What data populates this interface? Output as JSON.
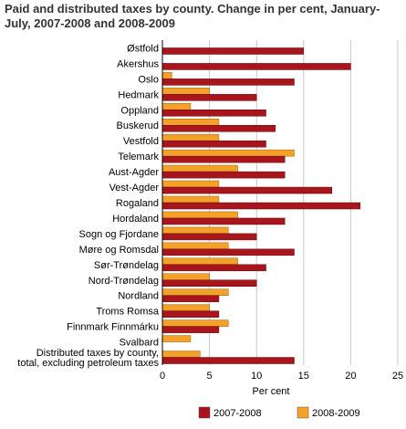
{
  "chart_data": {
    "type": "bar",
    "orientation": "horizontal",
    "title": "Paid and distributed taxes by county. Change in per cent, January-July, 2007-2008 and 2008-2009",
    "xlabel": "Per cent",
    "xlim": [
      0,
      25
    ],
    "xticks": [
      "0",
      "5",
      "10",
      "15",
      "20",
      "25"
    ],
    "grid": true,
    "legend_position": "bottom",
    "categories": [
      [
        "Østfold"
      ],
      [
        "Akershus"
      ],
      [
        "Oslo"
      ],
      [
        "Hedmark"
      ],
      [
        "Oppland"
      ],
      [
        "Buskerud"
      ],
      [
        "Vestfold"
      ],
      [
        "Telemark"
      ],
      [
        "Aust-Agder"
      ],
      [
        "Vest-Agder"
      ],
      [
        "Rogaland"
      ],
      [
        "Hordaland"
      ],
      [
        "Sogn og Fjordane"
      ],
      [
        "Møre og Romsdal"
      ],
      [
        "Sør-Trøndelag"
      ],
      [
        "Nord-Trøndelag"
      ],
      [
        "Nordland"
      ],
      [
        "Troms Romsa"
      ],
      [
        "Finnmark Finnmárku"
      ],
      [
        "Svalbard"
      ],
      [
        "Distributed taxes by county,",
        "total, excluding petroleum taxes"
      ]
    ],
    "series": [
      {
        "name": "2007-2008",
        "color": "#a8151c",
        "values": [
          15,
          20,
          14,
          10,
          11,
          12,
          11,
          13,
          13,
          18,
          21,
          13,
          10,
          14,
          11,
          10,
          6,
          6,
          6,
          null,
          14
        ]
      },
      {
        "name": "2008-2009",
        "color": "#f3a129",
        "values": [
          null,
          null,
          1,
          5,
          3,
          6,
          6,
          14,
          8,
          6,
          6,
          8,
          7,
          7,
          8,
          5,
          7,
          5,
          7,
          3,
          4
        ]
      }
    ]
  }
}
